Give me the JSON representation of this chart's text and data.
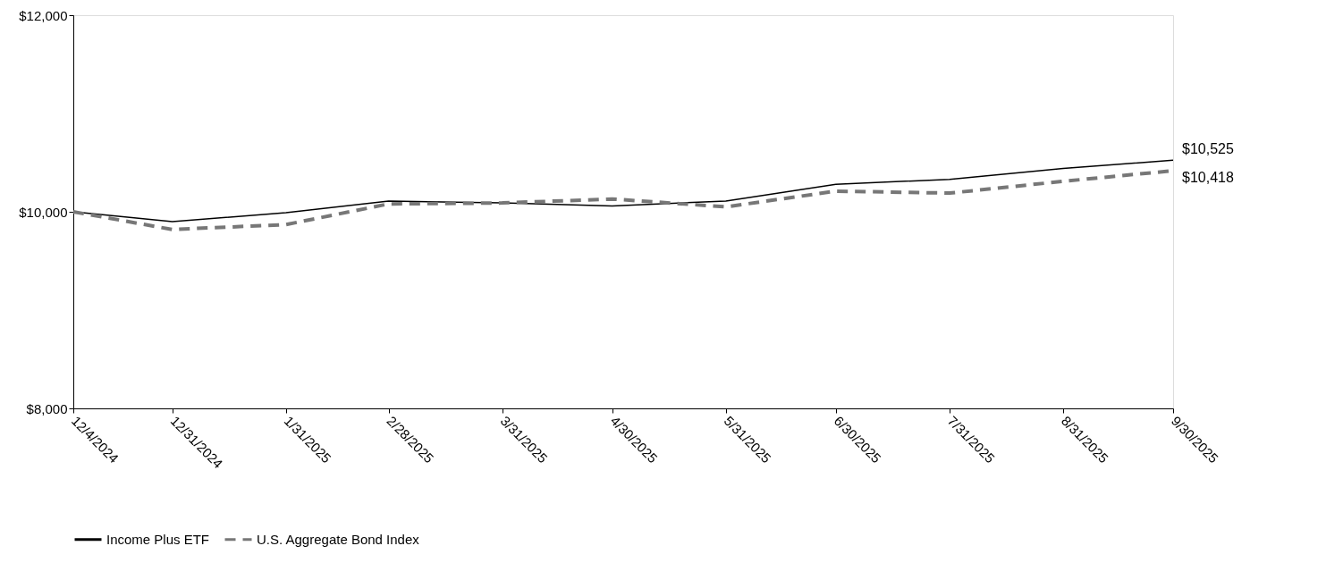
{
  "chart_data": {
    "type": "line",
    "x": [
      "2024-12-04",
      "2024-12-31",
      "2025-01-31",
      "2025-02-28",
      "2025-03-31",
      "2025-04-30",
      "2025-05-31",
      "2025-06-30",
      "2025-07-31",
      "2025-08-31",
      "2025-09-30"
    ],
    "series": [
      {
        "name": "Income Plus ETF",
        "color": "#000000",
        "line_style": "solid",
        "values": [
          10000,
          9900,
          9990,
          10110,
          10090,
          10060,
          10110,
          10280,
          10330,
          10440,
          10525
        ]
      },
      {
        "name": "U.S. Aggregate Bond Index",
        "color": "#777777",
        "line_style": "dashed",
        "values": [
          10000,
          9820,
          9870,
          10080,
          10090,
          10130,
          10050,
          10210,
          10190,
          10310,
          10418
        ]
      }
    ],
    "xlim": [
      "2024-12-04",
      "2025-09-30"
    ],
    "xticks": [
      {
        "value": "2024-12-04",
        "label": "12/4/2024"
      },
      {
        "value": "2024-12-31",
        "label": "12/31/2024"
      },
      {
        "value": "2025-01-31",
        "label": "1/31/2025"
      },
      {
        "value": "2025-02-28",
        "label": "2/28/2025"
      },
      {
        "value": "2025-03-31",
        "label": "3/31/2025"
      },
      {
        "value": "2025-04-30",
        "label": "4/30/2025"
      },
      {
        "value": "2025-05-31",
        "label": "5/31/2025"
      },
      {
        "value": "2025-06-30",
        "label": "6/30/2025"
      },
      {
        "value": "2025-07-31",
        "label": "7/31/2025"
      },
      {
        "value": "2025-08-31",
        "label": "8/31/2025"
      },
      {
        "value": "2025-09-30",
        "label": "9/30/2025"
      }
    ],
    "ylim": [
      8000,
      12000
    ],
    "yticks": [
      {
        "value": 8000,
        "label": "$8,000"
      },
      {
        "value": 10000,
        "label": "$10,000"
      },
      {
        "value": 12000,
        "label": "$12,000"
      }
    ],
    "annotations": [
      {
        "text": "$10,525",
        "x": "2025-09-30",
        "y": 10525
      },
      {
        "text": "$10,418",
        "x": "2025-09-30",
        "y": 10418
      }
    ],
    "grid": false,
    "legend": "bottom",
    "marker": "none"
  }
}
